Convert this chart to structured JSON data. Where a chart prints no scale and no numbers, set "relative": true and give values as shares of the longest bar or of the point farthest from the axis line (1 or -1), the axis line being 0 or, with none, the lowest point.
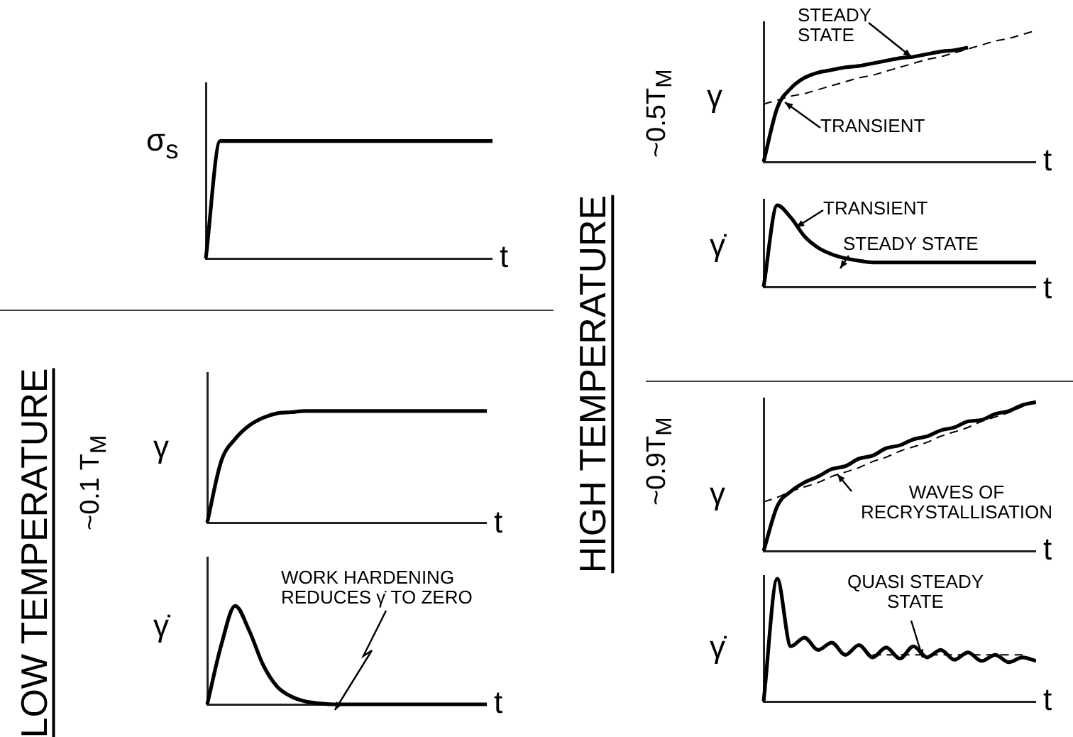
{
  "chart_data": [
    {
      "type": "line",
      "relative": true,
      "ylabel": "σ$_{s}$",
      "xlabel": "t",
      "categories": [
        null,
        null,
        null,
        null,
        null,
        null,
        null,
        null,
        null,
        null,
        null,
        null,
        null,
        null,
        null,
        null,
        null,
        null,
        null,
        null,
        null
      ],
      "series": [
        {
          "color": "#000000",
          "values": [
            0,
            1,
            1,
            1,
            1,
            1,
            1,
            1,
            1,
            1,
            1,
            1,
            1,
            1,
            1,
            1,
            1,
            1,
            1,
            1,
            1
          ]
        }
      ]
    },
    {
      "type": "other",
      "title": "LOW TEMPERATURE",
      "annotations": [
        "~0.1 T$_{M}$"
      ]
    },
    {
      "type": "line",
      "relative": true,
      "ylabel": "γ",
      "xlabel": "t",
      "categories": [
        null,
        null,
        null,
        null,
        null,
        null,
        null,
        null,
        null,
        null,
        null,
        null,
        null,
        null,
        null,
        null,
        null,
        null,
        null,
        null,
        null
      ],
      "series": [
        {
          "color": "#000000",
          "values": [
            0,
            0.55,
            0.75,
            0.87,
            0.94,
            0.98,
            0.99,
            1,
            1,
            1,
            1,
            1,
            1,
            1,
            1,
            1,
            1,
            1,
            1,
            1,
            1
          ]
        }
      ]
    },
    {
      "type": "line",
      "relative": true,
      "ylabel": "γ̇",
      "xlabel": "t",
      "annotations": [
        "WORK HARDENING REDUCES γ̇ TO ZERO"
      ],
      "categories": [
        null,
        null,
        null,
        null,
        null,
        null,
        null,
        null,
        null,
        null,
        null,
        null,
        null,
        null,
        null,
        null,
        null,
        null,
        null,
        null,
        null
      ],
      "series": [
        {
          "color": "#000000",
          "values": [
            0,
            0.6,
            1,
            0.75,
            0.4,
            0.18,
            0.08,
            0.03,
            0.01,
            0,
            0,
            0,
            0,
            0,
            0,
            0,
            0,
            0,
            0,
            0,
            0
          ]
        }
      ]
    },
    {
      "type": "other",
      "title": "HIGH TEMPERATURE",
      "annotations": [
        "~0.5T$_{M}$",
        "~0.9T$_{M}$"
      ]
    },
    {
      "type": "line",
      "relative": true,
      "ylabel": "γ",
      "xlabel": "t",
      "annotations": [
        "STEADY STATE",
        "TRANSIENT"
      ],
      "categories": [
        null,
        null,
        null,
        null,
        null,
        null,
        null,
        null,
        null,
        null,
        null,
        null,
        null,
        null,
        null,
        null,
        null,
        null,
        null,
        null,
        null
      ],
      "series": [
        {
          "color": "#000000",
          "values": [
            0,
            0.41,
            0.56,
            0.64,
            0.68,
            0.7,
            0.72,
            0.73,
            0.75,
            0.77,
            0.79,
            0.8,
            0.82,
            0.84,
            0.85,
            0.87,
            null,
            null,
            null,
            null,
            null
          ]
        },
        {
          "color": "#000000",
          "line_style": "dashed",
          "values": [
            0.44,
            0.47,
            0.5,
            0.52,
            0.55,
            0.58,
            0.61,
            0.64,
            0.66,
            0.69,
            0.72,
            0.75,
            0.78,
            0.8,
            0.83,
            0.86,
            0.89,
            0.92,
            0.94,
            0.97,
            1
          ]
        }
      ]
    },
    {
      "type": "line",
      "relative": true,
      "ylabel": "γ̇",
      "xlabel": "t",
      "annotations": [
        "TRANSIENT",
        "STEADY STATE"
      ],
      "categories": [
        null,
        null,
        null,
        null,
        null,
        null,
        null,
        null,
        null,
        null,
        null,
        null,
        null,
        null,
        null,
        null,
        null,
        null,
        null,
        null,
        null
      ],
      "series": [
        {
          "color": "#000000",
          "values": [
            0,
            1,
            0.85,
            0.62,
            0.48,
            0.4,
            0.35,
            0.32,
            0.3,
            0.3,
            0.3,
            0.3,
            0.3,
            0.3,
            0.3,
            0.3,
            0.3,
            0.3,
            0.3,
            0.3,
            0.3
          ]
        }
      ]
    },
    {
      "type": "line",
      "relative": true,
      "ylabel": "γ",
      "xlabel": "t",
      "annotations": [
        "WAVES OF RECRYSTALLISATION"
      ],
      "categories": [
        null,
        null,
        null,
        null,
        null,
        null,
        null,
        null,
        null,
        null,
        null,
        null,
        null,
        null,
        null,
        null,
        null,
        null,
        null,
        null,
        null
      ],
      "series": [
        {
          "color": "#000000",
          "values": [
            0,
            0.3,
            0.4,
            0.46,
            0.5,
            0.55,
            0.57,
            0.62,
            0.64,
            0.69,
            0.71,
            0.75,
            0.77,
            0.81,
            0.83,
            0.87,
            0.88,
            0.92,
            0.94,
            0.98,
            1
          ]
        },
        {
          "color": "#000000",
          "line_style": "dashed",
          "values": [
            0.33,
            0.36,
            0.4,
            0.43,
            0.46,
            0.5,
            0.53,
            0.56,
            0.6,
            0.63,
            0.67,
            0.7,
            0.73,
            0.77,
            0.8,
            0.83,
            0.87,
            0.9,
            0.93,
            0.97,
            null
          ]
        }
      ]
    },
    {
      "type": "line",
      "relative": true,
      "ylabel": "γ̇",
      "xlabel": "t",
      "annotations": [
        "QUASI STEADY STATE"
      ],
      "categories": [
        null,
        null,
        null,
        null,
        null,
        null,
        null,
        null,
        null,
        null,
        null,
        null,
        null,
        null,
        null,
        null,
        null,
        null,
        null,
        null,
        null
      ],
      "series": [
        {
          "color": "#000000",
          "values": [
            0,
            1,
            0.45,
            0.52,
            0.42,
            0.48,
            0.38,
            0.46,
            0.36,
            0.44,
            0.35,
            0.45,
            0.36,
            0.42,
            0.34,
            0.4,
            0.33,
            0.38,
            0.32,
            0.36,
            0.33
          ]
        },
        {
          "color": "#000000",
          "line_style": "dashed",
          "values": [
            null,
            null,
            null,
            null,
            null,
            null,
            null,
            null,
            0.38,
            0.38,
            0.38,
            0.38,
            0.38,
            0.38,
            0.38,
            0.38,
            0.38,
            0.38,
            0.38,
            0.38,
            null
          ]
        }
      ]
    }
  ]
}
